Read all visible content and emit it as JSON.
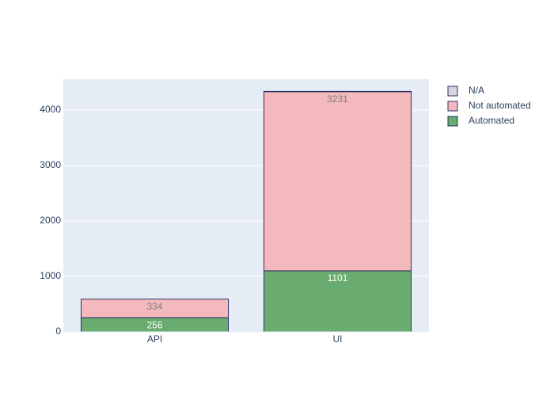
{
  "chart_data": {
    "type": "stacked-bar",
    "categories": [
      "API",
      "UI"
    ],
    "series": [
      {
        "name": "Automated",
        "color": "#6aab6f",
        "label_color": "#ffffff",
        "values": [
          256,
          1101
        ]
      },
      {
        "name": "Not automated",
        "color": "#f4b9bc",
        "label_color": "#7f7f7f",
        "values": [
          334,
          3231
        ]
      },
      {
        "name": "N/A",
        "color": "#d5d5dd",
        "values": [
          0,
          5
        ]
      }
    ],
    "ylim": [
      0,
      4557
    ],
    "yticks": [
      0,
      1000,
      2000,
      3000,
      4000
    ],
    "grid": true,
    "legend": "right"
  }
}
